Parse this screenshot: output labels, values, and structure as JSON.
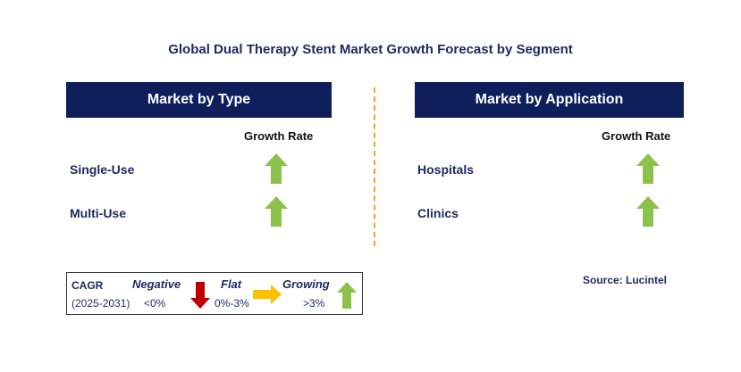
{
  "title": "Global Dual Therapy Stent Market Growth Forecast by Segment",
  "left_panel": {
    "header": "Market by Type",
    "growth_label": "Growth Rate",
    "rows": [
      {
        "label": "Single-Use",
        "trend": "growing"
      },
      {
        "label": "Multi-Use",
        "trend": "growing"
      }
    ]
  },
  "right_panel": {
    "header": "Market by Application",
    "growth_label": "Growth Rate",
    "rows": [
      {
        "label": "Hospitals",
        "trend": "growing"
      },
      {
        "label": "Clinics",
        "trend": "growing"
      }
    ]
  },
  "legend": {
    "cagr": "CAGR",
    "period": "(2025-2031)",
    "negative_label": "Negative",
    "negative_range": "<0%",
    "flat_label": "Flat",
    "flat_range": "0%-3%",
    "growing_label": "Growing",
    "growing_range": ">3%"
  },
  "source": "Source: Lucintel",
  "colors": {
    "header_bg": "#0e1f5b",
    "growing": "#8bc34a",
    "negative": "#c00000",
    "flat": "#ffc000",
    "divider": "#f0a818"
  }
}
